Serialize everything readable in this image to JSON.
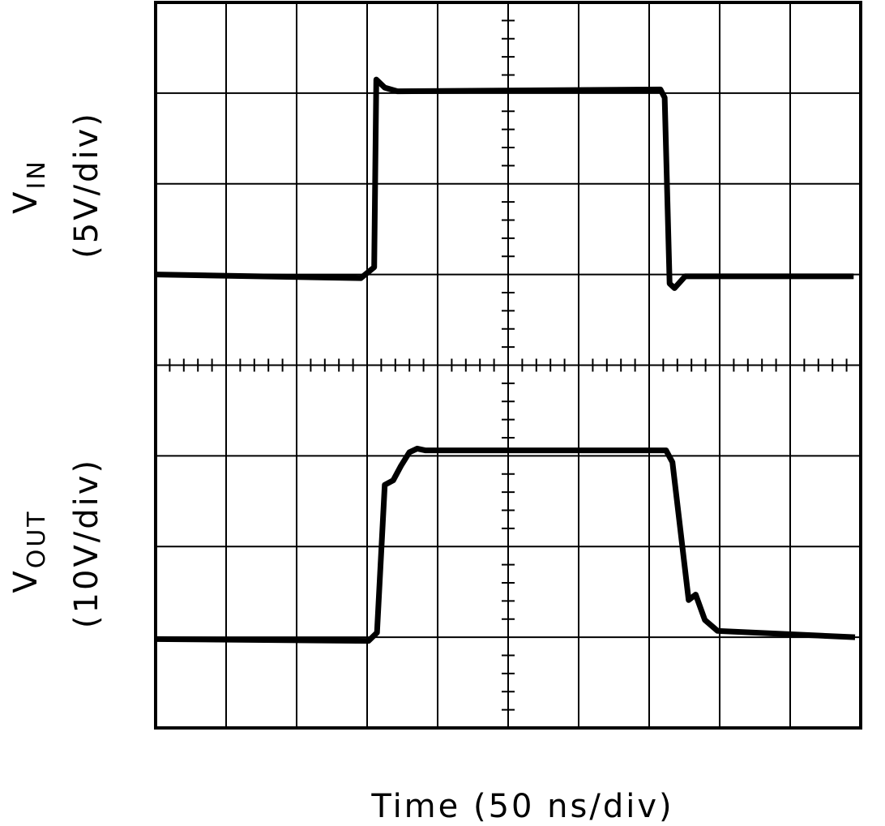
{
  "chart_data": {
    "type": "scope",
    "x_label": "Time (50 ns/div)",
    "y_labels": [
      {
        "symbol": "V",
        "subscript": "IN",
        "scale": "(5V/div)"
      },
      {
        "symbol": "V",
        "subscript": "OUT",
        "scale": "(10V/div)"
      }
    ],
    "xlim": [
      0,
      10
    ],
    "ylim": [
      0,
      8
    ],
    "xticks": [
      0,
      1,
      2,
      3,
      4,
      5,
      6,
      7,
      8,
      9,
      10
    ],
    "yticks": [
      0,
      1,
      2,
      3,
      4,
      5,
      6,
      7,
      8
    ],
    "grid": true,
    "series": [
      {
        "color": "#000000",
        "x": [
          0,
          2.91,
          3.1,
          3.13,
          3.25,
          3.43,
          7.16,
          7.22,
          7.29,
          7.36,
          7.51,
          9.9
        ],
        "values": [
          5.0,
          4.96,
          5.08,
          7.15,
          7.06,
          7.02,
          7.04,
          6.95,
          4.9,
          4.85,
          4.98,
          4.98
        ]
      },
      {
        "color": "#000000",
        "x": [
          0,
          3.02,
          3.14,
          3.25,
          3.37,
          3.48,
          3.6,
          3.71,
          3.83,
          7.24,
          7.33,
          7.56,
          7.66,
          7.79,
          7.97,
          9.92
        ],
        "values": [
          0.98,
          0.96,
          1.05,
          2.68,
          2.73,
          2.89,
          3.04,
          3.08,
          3.06,
          3.06,
          2.93,
          1.41,
          1.47,
          1.19,
          1.07,
          1.0
        ]
      }
    ]
  }
}
